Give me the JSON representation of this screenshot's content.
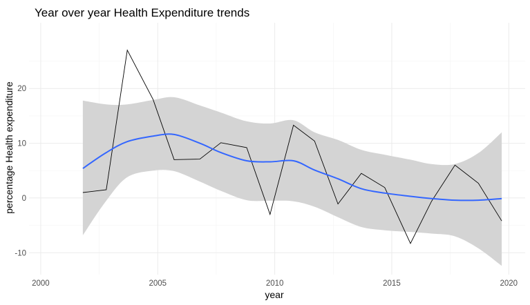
{
  "chart_data": {
    "type": "line",
    "title": "Year over year  Health Expenditure trends",
    "xlabel": "year",
    "ylabel": "percentage Health expenditure",
    "xlim": [
      1999.5,
      2020.7
    ],
    "ylim": [
      -14,
      32
    ],
    "xticks": [
      2000,
      2005,
      2010,
      2015,
      2020
    ],
    "yticks": [
      -10,
      0,
      10,
      20
    ],
    "grid": true,
    "legend": "none",
    "series": [
      {
        "kind": "line",
        "color": "#000000",
        "x": [
          2001.8,
          2002.8,
          2003.7,
          2004.8,
          2005.7,
          2006.8,
          2007.7,
          2008.8,
          2009.8,
          2010.8,
          2011.7,
          2012.7,
          2013.7,
          2014.7,
          2015.8,
          2016.7,
          2017.7,
          2018.7,
          2019.7
        ],
        "y": [
          1.0,
          1.5,
          27.0,
          18.0,
          7.0,
          7.1,
          10.1,
          9.2,
          -3.0,
          13.3,
          10.4,
          -1.1,
          4.5,
          1.9,
          -8.3,
          -0.6,
          6.0,
          2.7,
          -4.2
        ]
      },
      {
        "kind": "smooth",
        "color": "#3366ff",
        "band_color": "#d4d4d4",
        "x": [
          2001.8,
          2002.8,
          2003.7,
          2004.8,
          2005.7,
          2006.8,
          2007.7,
          2008.8,
          2009.8,
          2010.8,
          2011.7,
          2012.7,
          2013.7,
          2014.7,
          2015.8,
          2016.7,
          2017.7,
          2018.7,
          2019.7
        ],
        "y": [
          5.4,
          8.3,
          10.3,
          11.3,
          11.6,
          10.0,
          8.3,
          6.8,
          6.6,
          6.8,
          5.1,
          3.5,
          1.7,
          0.9,
          0.3,
          -0.1,
          -0.4,
          -0.4,
          -0.1
        ],
        "ymin": [
          -6.8,
          -0.5,
          3.8,
          5.0,
          4.9,
          3.0,
          1.3,
          -0.4,
          -0.5,
          -0.6,
          -1.6,
          -3.5,
          -5.3,
          -5.9,
          -6.2,
          -6.5,
          -7.0,
          -9.2,
          -12.4
        ],
        "ymax": [
          17.8,
          17.1,
          17.1,
          17.9,
          18.4,
          16.9,
          15.6,
          14.0,
          13.6,
          14.2,
          12.0,
          10.6,
          8.8,
          7.9,
          7.0,
          6.2,
          6.2,
          8.2,
          12.0
        ]
      }
    ]
  }
}
